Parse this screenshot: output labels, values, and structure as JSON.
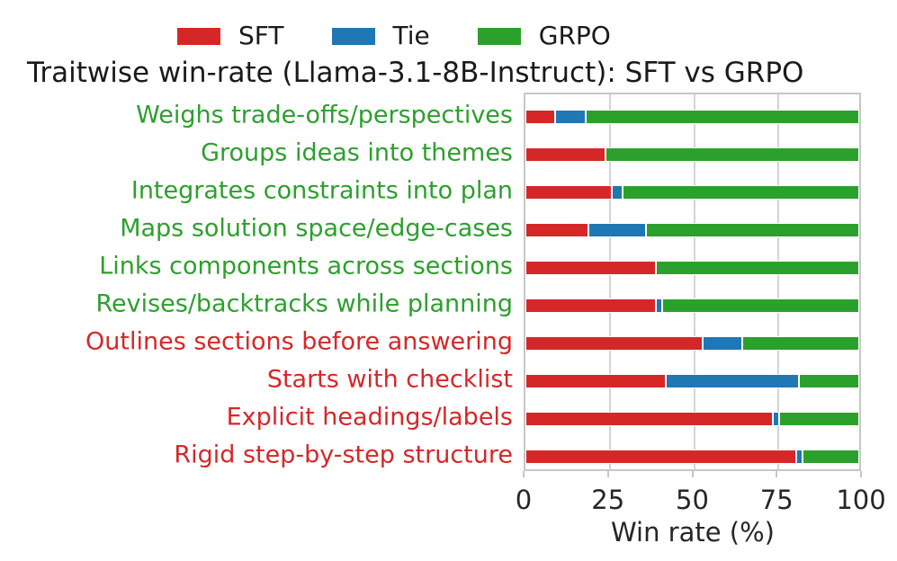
{
  "chart_data": {
    "type": "bar",
    "stacked": true,
    "orientation": "horizontal",
    "title": "Traitwise win-rate (Llama-3.1-8B-Instruct): SFT vs GRPO",
    "xlabel": "Win rate (%)",
    "xlim": [
      0,
      100
    ],
    "xticks": [
      0,
      25,
      50,
      75,
      100
    ],
    "grid": "vertical",
    "legend_position": "top",
    "legend": [
      {
        "label": "SFT",
        "color": "#d62728"
      },
      {
        "label": "Tie",
        "color": "#1f77b4"
      },
      {
        "label": "GRPO",
        "color": "#2ca02c"
      }
    ],
    "categories": [
      {
        "label": "Weighs trade-offs/perspectives",
        "label_color": "#2ca02c"
      },
      {
        "label": "Groups ideas into themes",
        "label_color": "#2ca02c"
      },
      {
        "label": "Integrates constraints into plan",
        "label_color": "#2ca02c"
      },
      {
        "label": "Maps solution space/edge-cases",
        "label_color": "#2ca02c"
      },
      {
        "label": "Links components across sections",
        "label_color": "#2ca02c"
      },
      {
        "label": "Revises/backtracks while planning",
        "label_color": "#2ca02c"
      },
      {
        "label": "Outlines sections before answering",
        "label_color": "#d62728"
      },
      {
        "label": "Starts with checklist",
        "label_color": "#d62728"
      },
      {
        "label": "Explicit headings/labels",
        "label_color": "#d62728"
      },
      {
        "label": "Rigid step-by-step structure",
        "label_color": "#d62728"
      }
    ],
    "series": [
      {
        "name": "SFT",
        "color": "#d62728",
        "values": [
          9,
          24,
          26,
          19,
          39,
          39,
          53,
          42,
          74,
          81
        ]
      },
      {
        "name": "Tie",
        "color": "#1f77b4",
        "values": [
          9,
          0,
          3,
          17,
          0,
          2,
          12,
          40,
          2,
          2
        ]
      },
      {
        "name": "GRPO",
        "color": "#2ca02c",
        "values": [
          82,
          76,
          71,
          64,
          61,
          59,
          35,
          18,
          24,
          17
        ]
      }
    ]
  }
}
